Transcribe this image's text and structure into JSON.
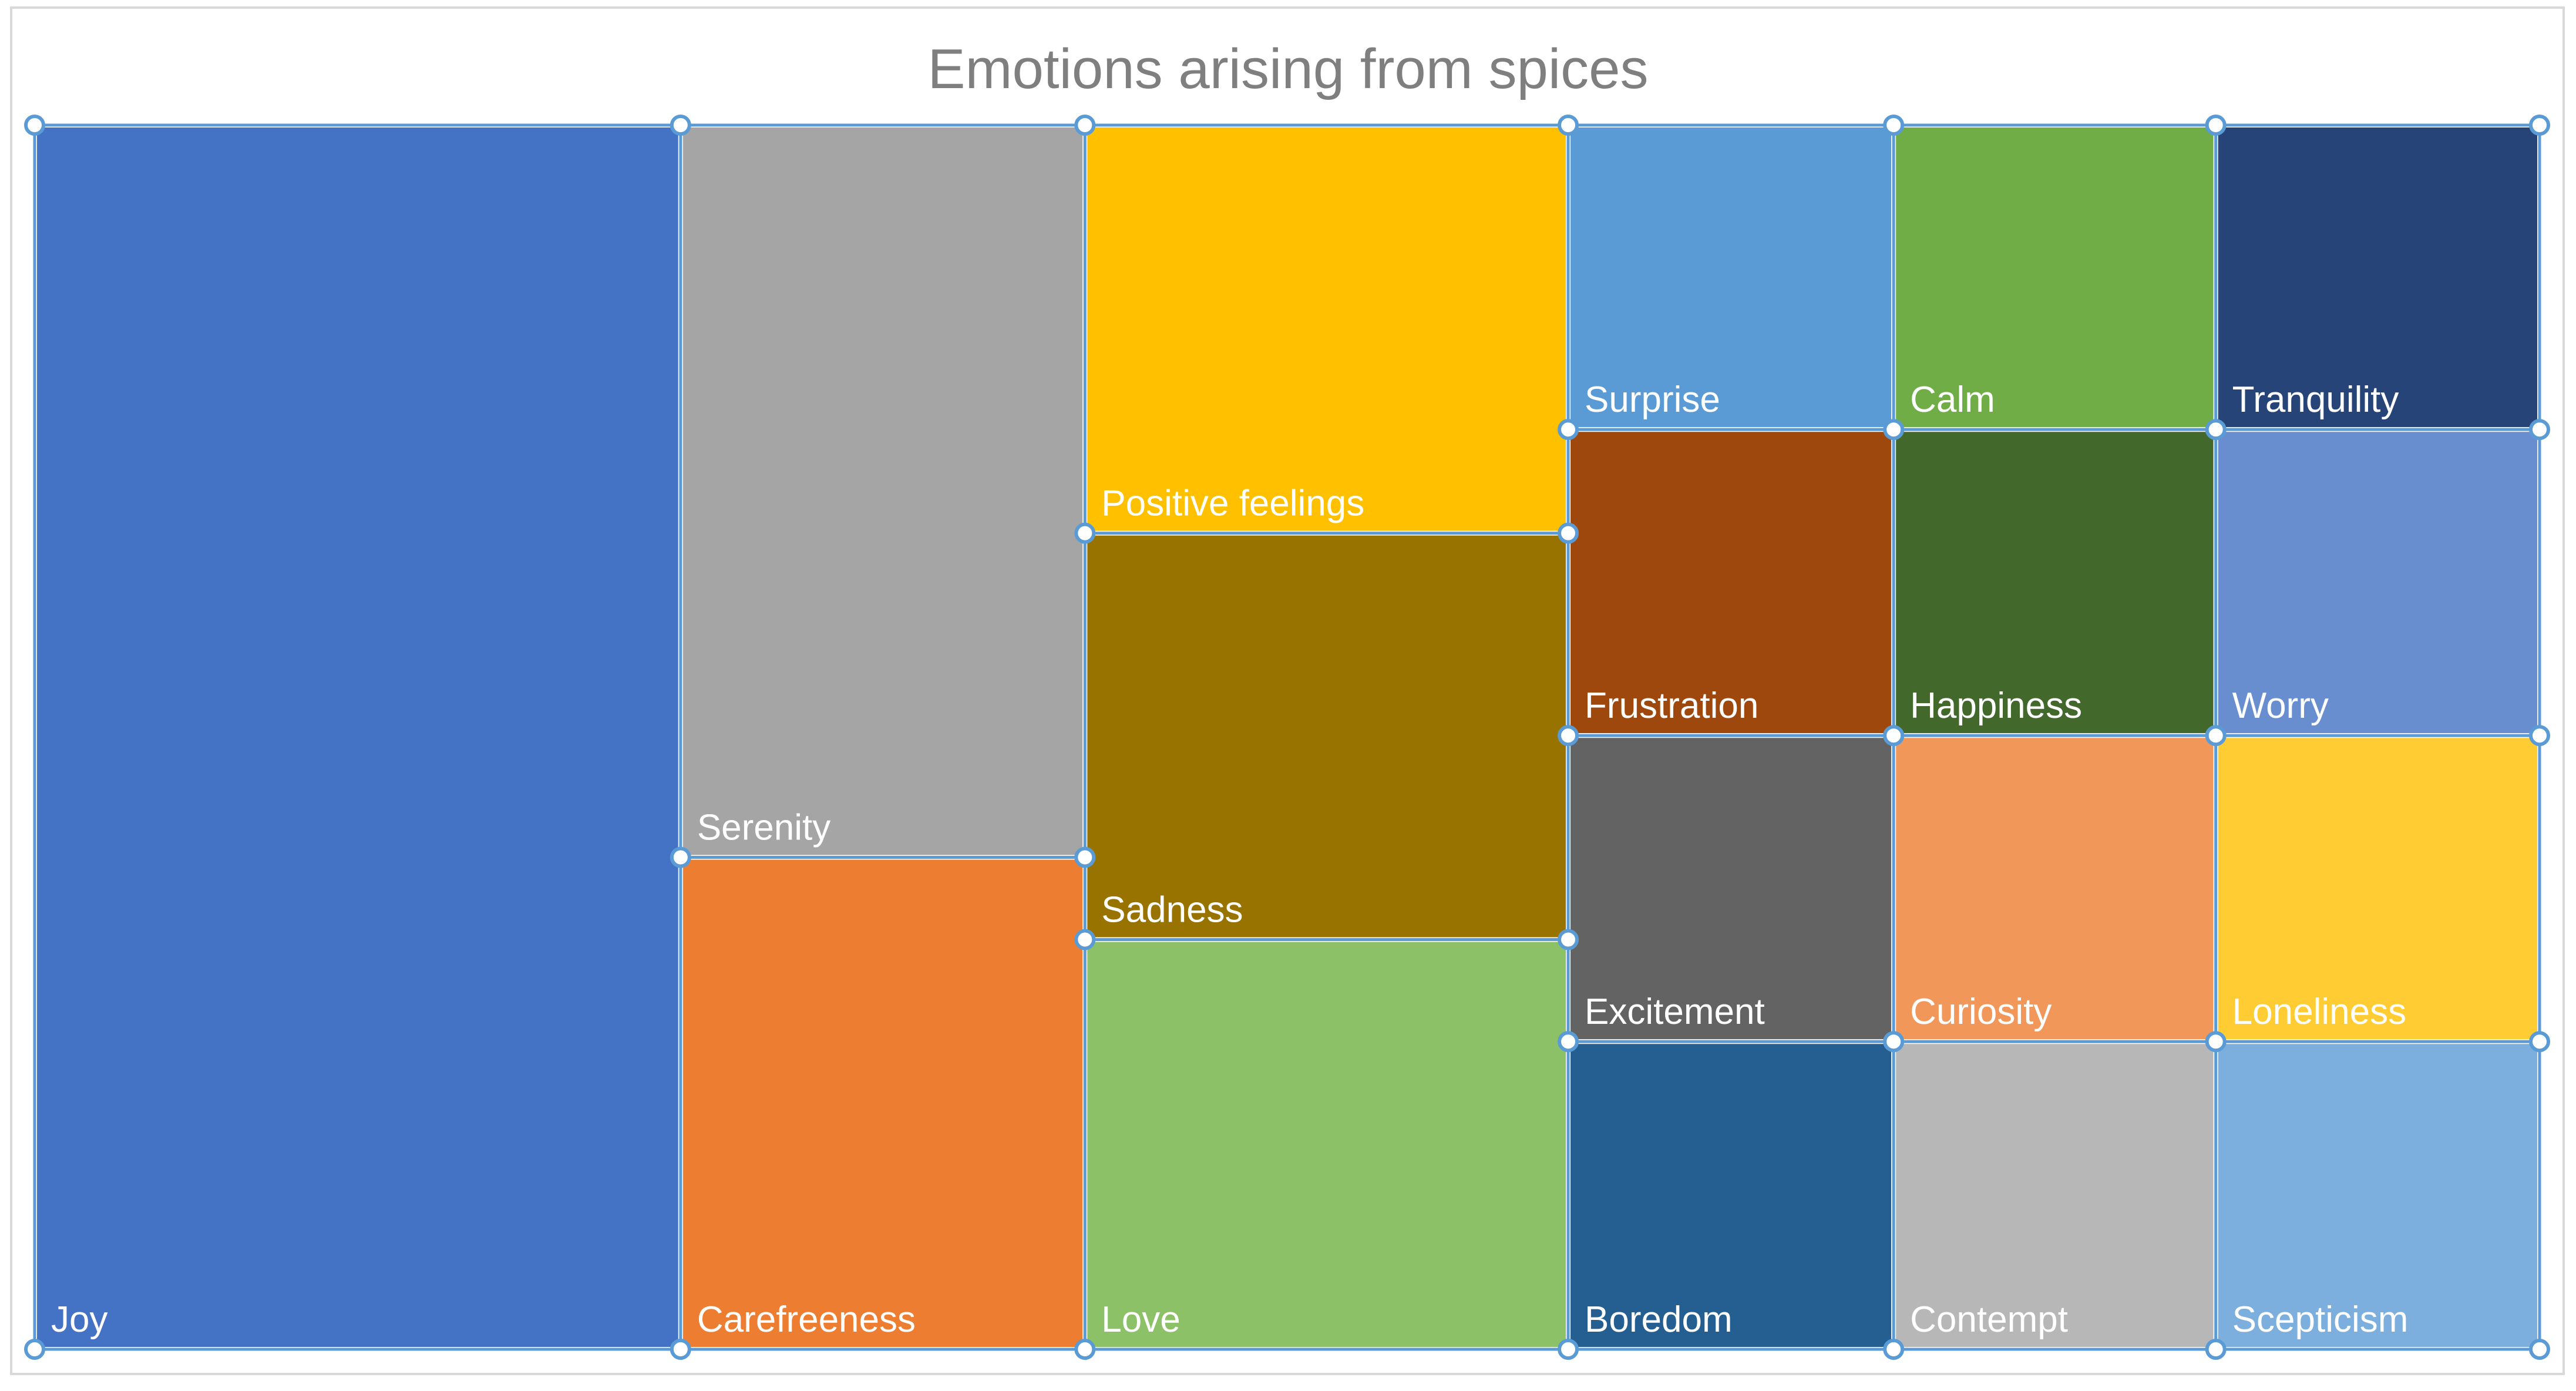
{
  "chart_data": {
    "type": "treemap",
    "title": "Emotions arising from spices",
    "categories": [
      "Joy",
      "Serenity",
      "Carefreeness",
      "Positive feelings",
      "Sadness",
      "Love",
      "Surprise",
      "Calm",
      "Tranquility",
      "Frustration",
      "Happiness",
      "Worry",
      "Excitement",
      "Curiosity",
      "Loneliness",
      "Boredom",
      "Contempt",
      "Scepticism"
    ],
    "values": [
      30,
      12.5,
      8.2,
      10.2,
      10.2,
      10.2,
      3.6,
      3.6,
      3.6,
      3.6,
      3.6,
      3.6,
      3.6,
      3.6,
      3.6,
      3.6,
      3.6,
      3.6
    ],
    "colors": [
      "#4472C4",
      "#A5A5A5",
      "#ED7D31",
      "#FFC000",
      "#997300",
      "#8CC168",
      "#5B9BD5",
      "#70AD47",
      "#264478",
      "#9E480E",
      "#43682B",
      "#698ED0",
      "#636363",
      "#F1975A",
      "#FFCD33",
      "#255E91",
      "#B7B7B7",
      "#7CAFDD"
    ],
    "selection_color": "#5B9BD5"
  }
}
